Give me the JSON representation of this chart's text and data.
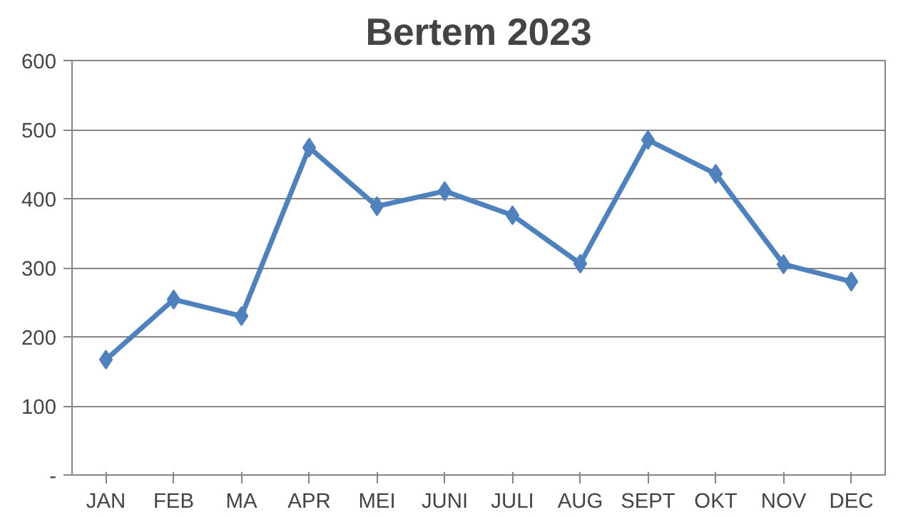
{
  "chart_data": {
    "type": "line",
    "title": "Bertem 2023",
    "categories": [
      "JAN",
      "FEB",
      "MA",
      "APR",
      "MEI",
      "JUNI",
      "JULI",
      "AUG",
      "SEPT",
      "OKT",
      "NOV",
      "DEC"
    ],
    "series": [
      {
        "color": "#4f81bd",
        "values": [
          167,
          254,
          230,
          474,
          389,
          411,
          376,
          306,
          485,
          436,
          305,
          280
        ]
      }
    ],
    "ylim": [
      0,
      600
    ],
    "yticks": [
      {
        "value": 0,
        "label": "-"
      },
      100,
      200,
      300,
      400,
      500,
      600
    ],
    "grid": "y",
    "marker": "diamond",
    "line_style": "solid"
  }
}
